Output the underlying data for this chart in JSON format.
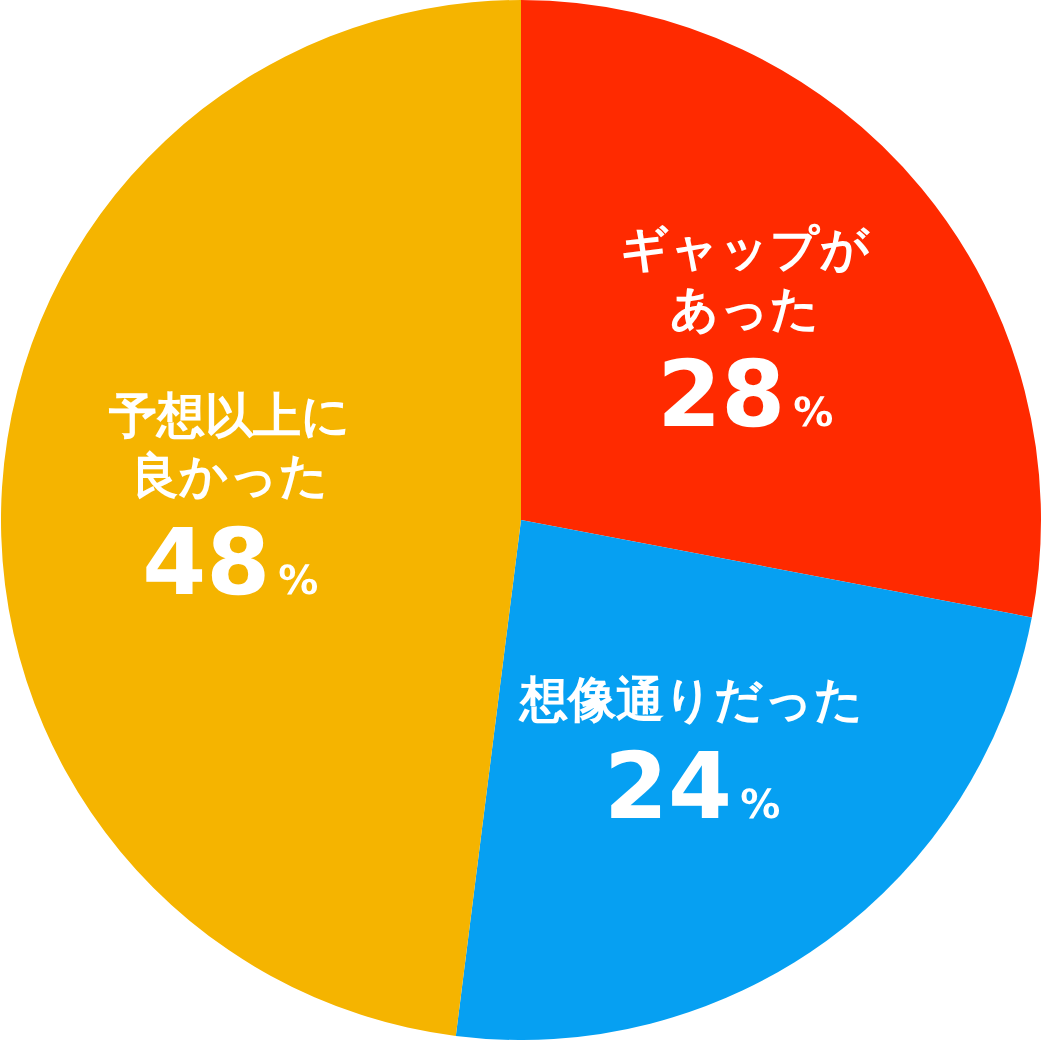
{
  "chart_data": {
    "type": "pie",
    "categories": [
      "ギャップがあった",
      "想像通りだった",
      "予想以上に良かった"
    ],
    "values": [
      28,
      24,
      48
    ],
    "value_labels": [
      "28%",
      "24%",
      "48%"
    ],
    "colors": [
      "#ff2a00",
      "#06a0f2",
      "#f5b400"
    ],
    "legend": false
  }
}
